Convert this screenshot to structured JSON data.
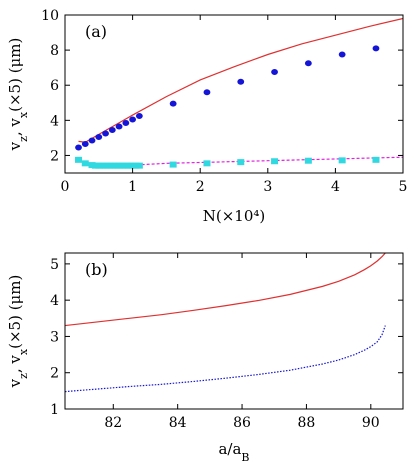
{
  "chart_data": [
    {
      "type": "line",
      "panel_label": "(a)",
      "xlabel": "N(×10⁴)",
      "ylabel": "v_z, v_x(×5) (μm)",
      "xlim": [
        0,
        5
      ],
      "ylim": [
        1,
        10
      ],
      "xticks": [
        0,
        1,
        2,
        3,
        4,
        5
      ],
      "yticks": [
        2,
        4,
        6,
        8,
        10
      ],
      "series": [
        {
          "style": "line",
          "color": "#e03030",
          "x": [
            0.2,
            0.3,
            0.5,
            0.75,
            1.0,
            1.5,
            2.0,
            2.5,
            3.0,
            3.5,
            4.0,
            4.5,
            5.0
          ],
          "y": [
            2.8,
            2.75,
            3.2,
            3.75,
            4.3,
            5.35,
            6.3,
            7.05,
            7.75,
            8.35,
            8.85,
            9.35,
            9.8
          ]
        },
        {
          "style": "points",
          "marker": "circle",
          "color": "#1515d8",
          "x": [
            0.2,
            0.3,
            0.4,
            0.5,
            0.6,
            0.7,
            0.8,
            0.9,
            1.0,
            1.1,
            1.6,
            2.1,
            2.6,
            3.1,
            3.6,
            4.1,
            4.6
          ],
          "y": [
            2.45,
            2.65,
            2.85,
            3.05,
            3.25,
            3.45,
            3.65,
            3.85,
            4.05,
            4.25,
            4.95,
            5.6,
            6.2,
            6.75,
            7.25,
            7.75,
            8.1
          ]
        },
        {
          "style": "dashed",
          "color": "#e020e0",
          "x": [
            0.2,
            0.3,
            0.5,
            0.75,
            1.0,
            1.5,
            2.0,
            2.5,
            3.0,
            3.5,
            4.0,
            4.5,
            5.0
          ],
          "y": [
            1.75,
            1.45,
            1.4,
            1.4,
            1.45,
            1.55,
            1.6,
            1.65,
            1.7,
            1.75,
            1.8,
            1.85,
            1.9
          ]
        },
        {
          "style": "points",
          "marker": "square",
          "color": "#30d8e0",
          "x": [
            0.2,
            0.3,
            0.4,
            0.45,
            0.5,
            0.55,
            0.6,
            0.65,
            0.7,
            0.75,
            0.8,
            0.85,
            0.9,
            0.95,
            1.0,
            1.05,
            1.1,
            1.6,
            2.1,
            2.6,
            3.1,
            3.6,
            4.1,
            4.6
          ],
          "y": [
            1.75,
            1.55,
            1.45,
            1.42,
            1.42,
            1.42,
            1.42,
            1.42,
            1.42,
            1.42,
            1.42,
            1.42,
            1.42,
            1.42,
            1.42,
            1.42,
            1.42,
            1.48,
            1.55,
            1.62,
            1.67,
            1.7,
            1.72,
            1.75
          ]
        }
      ]
    },
    {
      "type": "line",
      "panel_label": "(b)",
      "xlabel": "a/a_B",
      "ylabel": "v_z, v_x(×5) (μm)",
      "xlim": [
        80.5,
        91
      ],
      "ylim": [
        1,
        5.3
      ],
      "xticks": [
        82,
        84,
        86,
        88,
        90
      ],
      "yticks": [
        1,
        2,
        3,
        4,
        5
      ],
      "series": [
        {
          "style": "line",
          "color": "#e03030",
          "x": [
            80.5,
            81.5,
            82.5,
            83.5,
            84.5,
            85.5,
            86.5,
            87.5,
            88.5,
            89.0,
            89.5,
            89.8,
            90.0,
            90.2,
            90.35,
            90.45
          ],
          "y": [
            3.3,
            3.4,
            3.5,
            3.6,
            3.72,
            3.85,
            3.99,
            4.16,
            4.38,
            4.52,
            4.7,
            4.84,
            4.95,
            5.08,
            5.2,
            5.3
          ]
        },
        {
          "style": "dotted",
          "color": "#1515d8",
          "x": [
            80.5,
            81.5,
            82.5,
            83.5,
            84.5,
            85.5,
            86.5,
            87.5,
            88.5,
            89.0,
            89.5,
            89.8,
            90.0,
            90.2,
            90.35,
            90.45
          ],
          "y": [
            1.48,
            1.55,
            1.62,
            1.68,
            1.76,
            1.85,
            1.95,
            2.07,
            2.24,
            2.35,
            2.5,
            2.62,
            2.72,
            2.85,
            3.05,
            3.3
          ]
        }
      ]
    }
  ]
}
